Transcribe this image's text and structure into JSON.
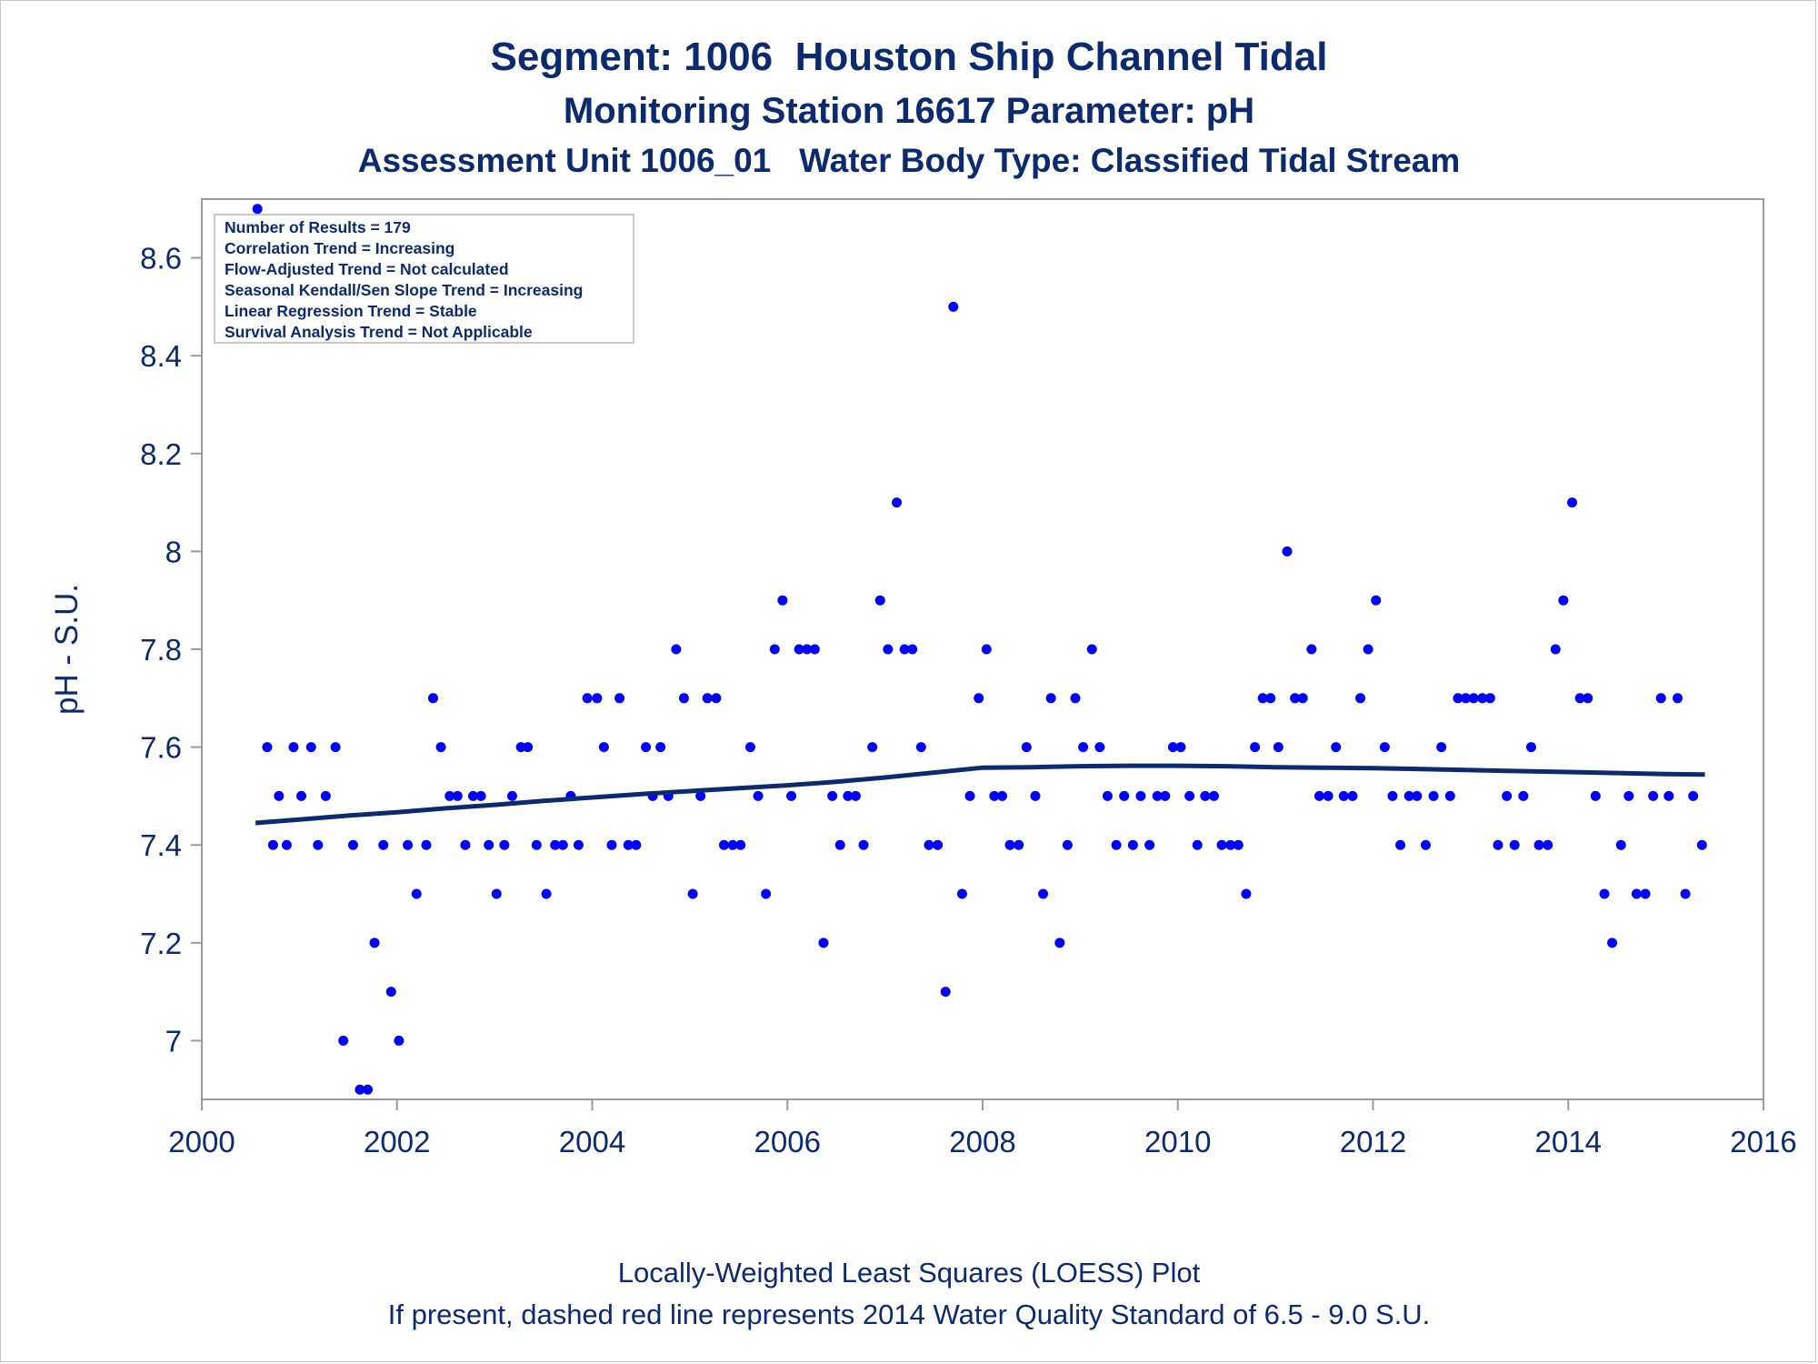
{
  "chart_data": {
    "type": "scatter",
    "title": "Segment: 1006  Houston Ship Channel Tidal",
    "subtitle": "Monitoring Station 16617 Parameter: pH",
    "subtitle2": "Assessment Unit 1006_01   Water Body Type: Classified Tidal Stream",
    "ylabel": "pH - S.U.",
    "xlabel": "",
    "xlim": [
      2000,
      2016
    ],
    "ylim": [
      6.88,
      8.72
    ],
    "x_ticks": [
      2000,
      2002,
      2004,
      2006,
      2008,
      2010,
      2012,
      2014,
      2016
    ],
    "y_ticks": [
      7,
      7.2,
      7.4,
      7.6,
      7.8,
      8,
      8.2,
      8.4,
      8.6
    ],
    "y_tick_labels": [
      "7",
      "7.2",
      "7.4",
      "7.6",
      "7.8",
      "8",
      "8.2",
      "8.4",
      "8.6"
    ],
    "grid": false,
    "colors": {
      "points": "#0000ff",
      "trend": "#0b2a6f",
      "text": "#0b2a6f",
      "axis": "#9a9a9a"
    },
    "stats_box": [
      "Number of Results = 179",
      "Correlation Trend = Increasing",
      "Flow-Adjusted Trend = Not calculated",
      "Seasonal Kendall/Sen Slope Trend = Increasing",
      "Linear Regression Trend = Stable",
      "Survival Analysis Trend = Not Applicable"
    ],
    "footnote1": "Locally-Weighted Least Squares (LOESS) Plot",
    "footnote2": "If present, dashed red line represents 2014 Water Quality Standard of 6.5 - 9.0 S.U.",
    "series": [
      {
        "type": "scatter",
        "x": [
          2000.57,
          2000.67,
          2000.73,
          2000.79,
          2000.87,
          2000.94,
          2001.02,
          2001.12,
          2001.19,
          2001.27,
          2001.37,
          2001.45,
          2001.55,
          2001.62,
          2001.7,
          2001.77,
          2001.86,
          2001.94,
          2002.02,
          2002.11,
          2002.2,
          2002.3,
          2002.37,
          2002.45,
          2002.54,
          2002.62,
          2002.7,
          2002.78,
          2002.86,
          2002.94,
          2003.02,
          2003.1,
          2003.18,
          2003.27,
          2003.34,
          2003.43,
          2003.53,
          2003.62,
          2003.7,
          2003.78,
          2003.86,
          2003.95,
          2004.05,
          2004.12,
          2004.2,
          2004.28,
          2004.37,
          2004.45,
          2004.55,
          2004.62,
          2004.7,
          2004.78,
          2004.86,
          2004.94,
          2005.03,
          2005.11,
          2005.18,
          2005.27,
          2005.35,
          2005.44,
          2005.52,
          2005.62,
          2005.7,
          2005.78,
          2005.87,
          2005.95,
          2006.04,
          2006.12,
          2006.2,
          2006.28,
          2006.37,
          2006.46,
          2006.54,
          2006.62,
          2006.7,
          2006.78,
          2006.87,
          2006.95,
          2007.03,
          2007.12,
          2007.2,
          2007.28,
          2007.37,
          2007.45,
          2007.54,
          2007.62,
          2007.7,
          2007.79,
          2007.87,
          2007.96,
          2008.04,
          2008.12,
          2008.2,
          2008.28,
          2008.37,
          2008.45,
          2008.54,
          2008.62,
          2008.7,
          2008.79,
          2008.87,
          2008.95,
          2009.03,
          2009.12,
          2009.2,
          2009.28,
          2009.37,
          2009.45,
          2009.54,
          2009.62,
          2009.71,
          2009.79,
          2009.87,
          2009.95,
          2010.03,
          2010.12,
          2010.2,
          2010.28,
          2010.37,
          2010.45,
          2010.54,
          2010.62,
          2010.7,
          2010.79,
          2010.87,
          2010.95,
          2011.03,
          2011.12,
          2011.2,
          2011.28,
          2011.37,
          2011.45,
          2011.54,
          2011.62,
          2011.7,
          2011.79,
          2011.87,
          2011.95,
          2012.03,
          2012.12,
          2012.2,
          2012.28,
          2012.37,
          2012.45,
          2012.54,
          2012.62,
          2012.7,
          2012.79,
          2012.87,
          2012.95,
          2013.03,
          2013.12,
          2013.2,
          2013.28,
          2013.37,
          2013.45,
          2013.54,
          2013.62,
          2013.7,
          2013.79,
          2013.87,
          2013.95,
          2014.04,
          2014.12,
          2014.2,
          2014.28,
          2014.37,
          2014.45,
          2014.54,
          2014.62,
          2014.7,
          2014.79,
          2014.87,
          2014.95,
          2015.03,
          2015.12,
          2015.2,
          2015.28,
          2015.37
        ],
        "y": [
          8.7,
          7.6,
          7.4,
          7.5,
          7.4,
          7.6,
          7.5,
          7.6,
          7.4,
          7.5,
          7.6,
          7.0,
          7.4,
          6.9,
          6.9,
          7.2,
          7.4,
          7.1,
          7.0,
          7.4,
          7.3,
          7.4,
          7.7,
          7.6,
          7.5,
          7.5,
          7.4,
          7.5,
          7.5,
          7.4,
          7.3,
          7.4,
          7.5,
          7.6,
          7.6,
          7.4,
          7.3,
          7.4,
          7.4,
          7.5,
          7.4,
          7.7,
          7.7,
          7.6,
          7.4,
          7.7,
          7.4,
          7.4,
          7.6,
          7.5,
          7.6,
          7.5,
          7.8,
          7.7,
          7.3,
          7.5,
          7.7,
          7.7,
          7.4,
          7.4,
          7.4,
          7.6,
          7.5,
          7.3,
          7.8,
          7.9,
          7.5,
          7.8,
          7.8,
          7.8,
          7.2,
          7.5,
          7.4,
          7.5,
          7.5,
          7.4,
          7.6,
          7.9,
          7.8,
          8.1,
          7.8,
          7.8,
          7.6,
          7.4,
          7.4,
          7.1,
          8.5,
          7.3,
          7.5,
          7.7,
          7.8,
          7.5,
          7.5,
          7.4,
          7.4,
          7.6,
          7.5,
          7.3,
          7.7,
          7.2,
          7.4,
          7.7,
          7.6,
          7.8,
          7.6,
          7.5,
          7.4,
          7.5,
          7.4,
          7.5,
          7.4,
          7.5,
          7.5,
          7.6,
          7.6,
          7.5,
          7.4,
          7.5,
          7.5,
          7.4,
          7.4,
          7.4,
          7.3,
          7.6,
          7.7,
          7.7,
          7.6,
          8.0,
          7.7,
          7.7,
          7.8,
          7.5,
          7.5,
          7.6,
          7.5,
          7.5,
          7.7,
          7.8,
          7.9,
          7.6,
          7.5,
          7.4,
          7.5,
          7.5,
          7.4,
          7.5,
          7.6,
          7.5,
          7.7,
          7.7,
          7.7,
          7.7,
          7.7,
          7.4,
          7.5,
          7.4,
          7.5,
          7.6,
          7.4,
          7.4,
          7.8,
          7.9,
          8.1,
          7.7,
          7.7,
          7.5,
          7.3,
          7.2,
          7.4,
          7.5,
          7.3,
          7.3,
          7.5,
          7.7,
          7.5,
          7.7,
          7.3,
          7.5,
          7.4
        ]
      },
      {
        "type": "line",
        "name": "",
        "x": [
          2000.55,
          2001,
          2001.5,
          2002,
          2002.5,
          2003,
          2003.5,
          2004,
          2004.5,
          2005,
          2005.5,
          2006,
          2006.5,
          2007,
          2007.5,
          2008,
          2008.5,
          2009,
          2009.5,
          2010,
          2010.5,
          2011,
          2011.5,
          2012,
          2012.5,
          2013,
          2013.5,
          2014,
          2014.5,
          2015,
          2015.4
        ],
        "y": [
          7.445,
          7.452,
          7.46,
          7.467,
          7.475,
          7.482,
          7.49,
          7.497,
          7.504,
          7.51,
          7.516,
          7.522,
          7.529,
          7.538,
          7.548,
          7.558,
          7.559,
          7.561,
          7.562,
          7.562,
          7.561,
          7.559,
          7.558,
          7.557,
          7.555,
          7.553,
          7.551,
          7.549,
          7.547,
          7.545,
          7.544
        ]
      }
    ]
  }
}
